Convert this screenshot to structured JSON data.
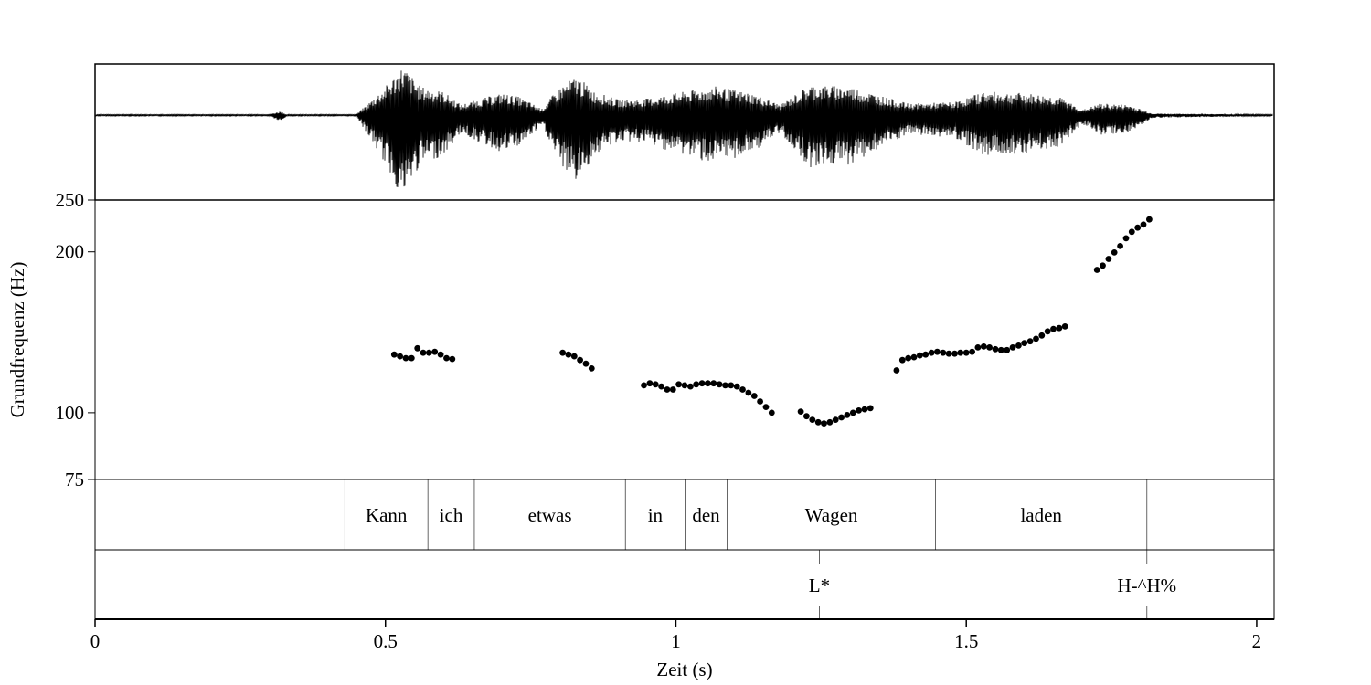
{
  "chart_data": {
    "type": "scatter",
    "title": "",
    "xlabel": "Zeit (s)",
    "ylabel": "Grundfrequenz (Hz)",
    "xlim": [
      0,
      2.03
    ],
    "ylim": [
      75,
      250
    ],
    "x_ticks": [
      {
        "value": 0,
        "label": "0"
      },
      {
        "value": 0.5,
        "label": "0.5"
      },
      {
        "value": 1,
        "label": "1"
      },
      {
        "value": 1.5,
        "label": "1.5"
      },
      {
        "value": 2,
        "label": "2"
      }
    ],
    "y_ticks": [
      {
        "value": 250,
        "label": "250"
      },
      {
        "value": 200,
        "label": "200"
      },
      {
        "value": 100,
        "label": "100"
      },
      {
        "value": 75,
        "label": "75"
      }
    ],
    "grid": false,
    "legend": "none",
    "waveform_envelope": [
      [
        0.0,
        0.01
      ],
      [
        0.3,
        0.01
      ],
      [
        0.32,
        0.08
      ],
      [
        0.33,
        0.01
      ],
      [
        0.45,
        0.01
      ],
      [
        0.46,
        0.12
      ],
      [
        0.5,
        0.55
      ],
      [
        0.53,
        0.95
      ],
      [
        0.56,
        0.55
      ],
      [
        0.6,
        0.45
      ],
      [
        0.63,
        0.2
      ],
      [
        0.66,
        0.3
      ],
      [
        0.7,
        0.42
      ],
      [
        0.73,
        0.35
      ],
      [
        0.77,
        0.12
      ],
      [
        0.8,
        0.55
      ],
      [
        0.83,
        0.75
      ],
      [
        0.86,
        0.45
      ],
      [
        0.9,
        0.3
      ],
      [
        0.94,
        0.3
      ],
      [
        1.0,
        0.42
      ],
      [
        1.07,
        0.55
      ],
      [
        1.13,
        0.42
      ],
      [
        1.18,
        0.2
      ],
      [
        1.23,
        0.58
      ],
      [
        1.3,
        0.55
      ],
      [
        1.35,
        0.38
      ],
      [
        1.4,
        0.22
      ],
      [
        1.48,
        0.25
      ],
      [
        1.53,
        0.45
      ],
      [
        1.6,
        0.42
      ],
      [
        1.66,
        0.35
      ],
      [
        1.7,
        0.1
      ],
      [
        1.73,
        0.22
      ],
      [
        1.78,
        0.2
      ],
      [
        1.82,
        0.03
      ],
      [
        2.03,
        0.01
      ]
    ],
    "series": [
      {
        "points": [
          [
            0.515,
            128.5
          ],
          [
            0.525,
            127.5
          ],
          [
            0.535,
            126.5
          ],
          [
            0.545,
            126.5
          ],
          [
            0.555,
            132
          ],
          [
            0.565,
            129.5
          ],
          [
            0.575,
            129.5
          ],
          [
            0.585,
            130
          ],
          [
            0.595,
            128.5
          ],
          [
            0.605,
            126.5
          ],
          [
            0.615,
            126
          ],
          [
            0.805,
            129.5
          ],
          [
            0.815,
            128.5
          ],
          [
            0.825,
            127.5
          ],
          [
            0.835,
            125.5
          ],
          [
            0.845,
            123.5
          ],
          [
            0.855,
            121
          ],
          [
            0.945,
            112.5
          ],
          [
            0.955,
            113.5
          ],
          [
            0.965,
            113
          ],
          [
            0.975,
            112
          ],
          [
            0.985,
            110.5
          ],
          [
            0.995,
            110.5
          ],
          [
            1.005,
            113
          ],
          [
            1.015,
            112.5
          ],
          [
            1.025,
            112
          ],
          [
            1.035,
            113
          ],
          [
            1.045,
            113.5
          ],
          [
            1.055,
            113.5
          ],
          [
            1.065,
            113.5
          ],
          [
            1.075,
            113
          ],
          [
            1.085,
            112.5
          ],
          [
            1.095,
            112.5
          ],
          [
            1.105,
            112
          ],
          [
            1.115,
            110.5
          ],
          [
            1.125,
            109
          ],
          [
            1.135,
            107.5
          ],
          [
            1.145,
            105
          ],
          [
            1.155,
            102.5
          ],
          [
            1.165,
            100
          ],
          [
            1.215,
            100.5
          ],
          [
            1.225,
            98.5
          ],
          [
            1.235,
            97
          ],
          [
            1.245,
            96
          ],
          [
            1.255,
            95.5
          ],
          [
            1.265,
            96
          ],
          [
            1.275,
            97
          ],
          [
            1.285,
            98
          ],
          [
            1.295,
            99
          ],
          [
            1.305,
            100
          ],
          [
            1.315,
            101
          ],
          [
            1.325,
            101.5
          ],
          [
            1.335,
            102
          ],
          [
            1.38,
            120
          ],
          [
            1.39,
            125.5
          ],
          [
            1.4,
            126.5
          ],
          [
            1.41,
            127
          ],
          [
            1.42,
            128
          ],
          [
            1.43,
            128.5
          ],
          [
            1.44,
            129.5
          ],
          [
            1.45,
            130
          ],
          [
            1.46,
            129.5
          ],
          [
            1.47,
            129
          ],
          [
            1.48,
            129
          ],
          [
            1.49,
            129.5
          ],
          [
            1.5,
            129.5
          ],
          [
            1.51,
            130
          ],
          [
            1.52,
            132.5
          ],
          [
            1.53,
            133
          ],
          [
            1.54,
            132.5
          ],
          [
            1.55,
            131.5
          ],
          [
            1.56,
            131
          ],
          [
            1.57,
            131
          ],
          [
            1.58,
            132.5
          ],
          [
            1.59,
            133.5
          ],
          [
            1.6,
            135
          ],
          [
            1.61,
            136
          ],
          [
            1.62,
            137.5
          ],
          [
            1.63,
            139.5
          ],
          [
            1.64,
            142
          ],
          [
            1.65,
            143.5
          ],
          [
            1.66,
            144
          ],
          [
            1.67,
            145
          ],
          [
            1.725,
            185
          ],
          [
            1.735,
            188.5
          ],
          [
            1.745,
            194
          ],
          [
            1.755,
            199.5
          ],
          [
            1.765,
            205
          ],
          [
            1.775,
            212
          ],
          [
            1.785,
            218
          ],
          [
            1.795,
            222
          ],
          [
            1.805,
            225
          ],
          [
            1.815,
            230
          ]
        ]
      }
    ],
    "words": [
      {
        "label": "",
        "start": 0.0,
        "end": 0.43
      },
      {
        "label": "Kann",
        "start": 0.43,
        "end": 0.573
      },
      {
        "label": "ich",
        "start": 0.573,
        "end": 0.653
      },
      {
        "label": "etwas",
        "start": 0.653,
        "end": 0.913
      },
      {
        "label": "in",
        "start": 0.913,
        "end": 1.016
      },
      {
        "label": "den",
        "start": 1.016,
        "end": 1.088
      },
      {
        "label": "Wagen",
        "start": 1.088,
        "end": 1.447
      },
      {
        "label": "laden",
        "start": 1.447,
        "end": 1.811
      },
      {
        "label": "",
        "start": 1.811,
        "end": 2.03
      }
    ],
    "tones": [
      {
        "label": "L*",
        "time": 1.247
      },
      {
        "label": "H-^H%",
        "time": 1.811
      }
    ]
  }
}
